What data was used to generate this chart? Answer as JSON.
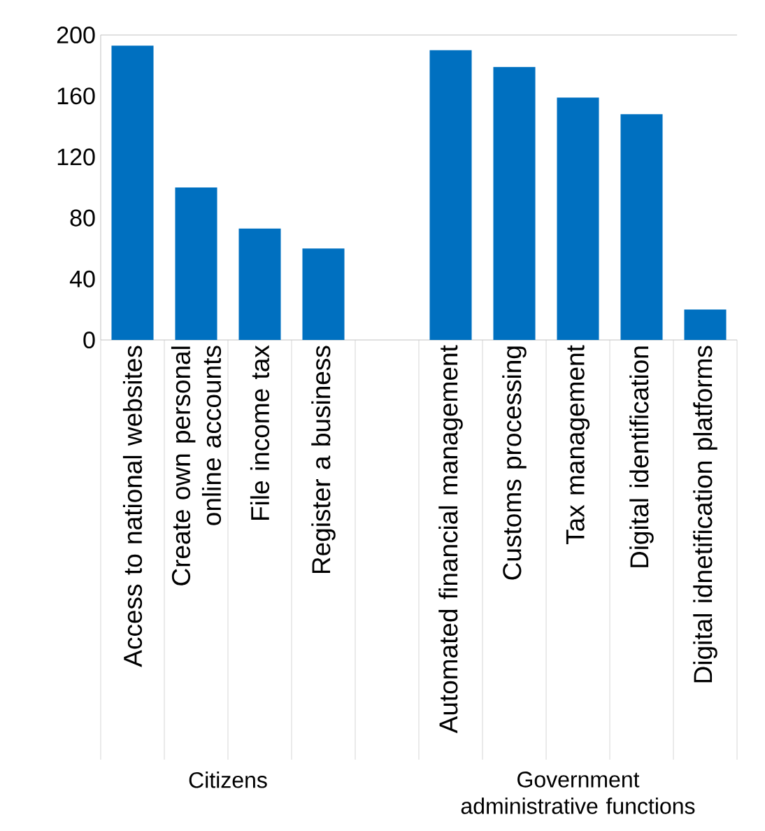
{
  "chart_data": {
    "type": "bar",
    "categories": [
      "Access to national websites",
      "Create own personal online accounts",
      "File income tax",
      "Register a business",
      null,
      "Automated financial management",
      "Customs processing",
      "Tax management",
      "Digital identification",
      "Digital idnetification platforms"
    ],
    "values": [
      193,
      100,
      73,
      60,
      null,
      190,
      179,
      159,
      148,
      20
    ],
    "color": "#0070c0",
    "ylim": [
      0,
      200
    ],
    "yticks": [
      0,
      40,
      80,
      120,
      160,
      200
    ],
    "annotations": [
      "Citizens",
      "Government administrative functions"
    ],
    "grid": false
  }
}
